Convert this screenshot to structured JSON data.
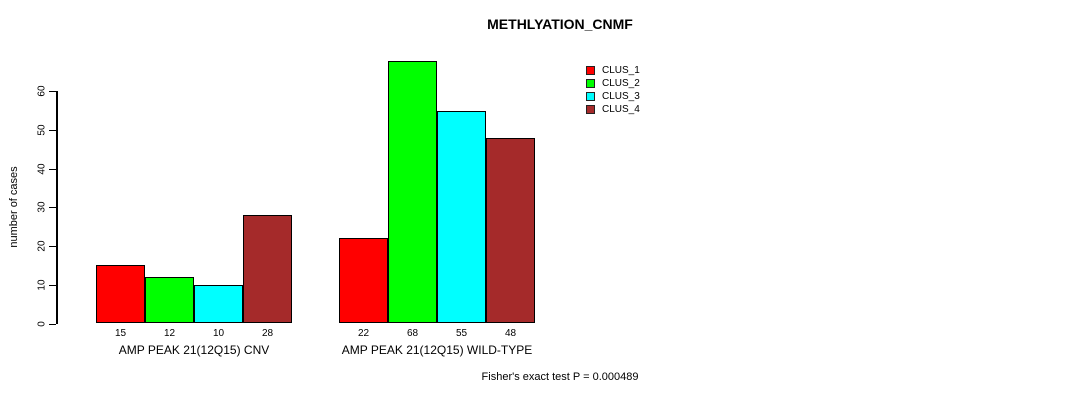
{
  "chart_data": {
    "type": "bar",
    "title": "METHLYATION_CNMF",
    "categories": [
      "AMP PEAK 21(12Q15) CNV",
      "AMP PEAK 21(12Q15) WILD-TYPE"
    ],
    "series": [
      {
        "name": "CLUS_1",
        "color": "#ff0000",
        "values": [
          15,
          22
        ]
      },
      {
        "name": "CLUS_2",
        "color": "#00ff00",
        "values": [
          12,
          68
        ]
      },
      {
        "name": "CLUS_3",
        "color": "#00ffff",
        "values": [
          10,
          55
        ]
      },
      {
        "name": "CLUS_4",
        "color": "#a52a2a",
        "values": [
          28,
          48
        ]
      }
    ],
    "xlabel": "",
    "ylabel": "number of cases",
    "yticks": [
      0,
      10,
      20,
      30,
      40,
      50,
      60
    ],
    "ylim": [
      0,
      68
    ],
    "grid": false,
    "bar_value_labels": true,
    "legend_position": "top-right",
    "annotation": "Fisher's exact test P = 0.000489"
  },
  "colors": {
    "background": "#ffffff",
    "axis": "#000000",
    "text": "#000000"
  }
}
